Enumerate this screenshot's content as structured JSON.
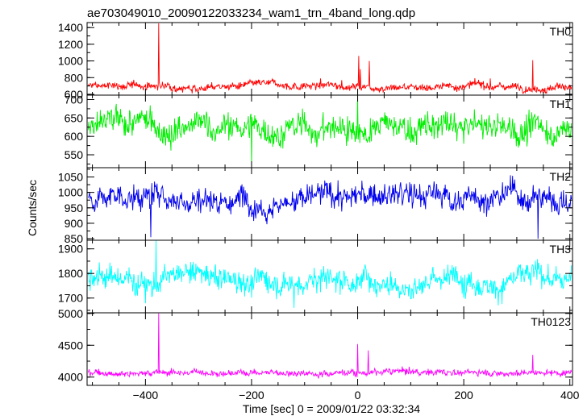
{
  "title": "ae703049010_20090122033234_wam1_trn_4band_long.qdp",
  "xlabel": "Time [sec] 0 = 2009/01/22 03:32:34",
  "ylabel": "Counts/sec",
  "chart_data": {
    "type": "line",
    "xlim": [
      -510,
      405
    ],
    "xticks": [
      -400,
      -200,
      0,
      200,
      400
    ],
    "grid": false,
    "panels": [
      {
        "name": "TH0",
        "color": "#ff0000",
        "ylim": [
          590,
          1460
        ],
        "yticks": [
          600,
          800,
          1000,
          1200,
          1400
        ],
        "baseline": 700,
        "noise": 40,
        "spikes": [
          [
            -375,
            1450
          ],
          [
            -70,
            790
          ],
          [
            -30,
            770
          ],
          [
            2,
            1060
          ],
          [
            5,
            900
          ],
          [
            22,
            1000
          ],
          [
            250,
            790
          ],
          [
            330,
            1010
          ]
        ]
      },
      {
        "name": "TH1",
        "color": "#00ee00",
        "ylim": [
          515,
          712
        ],
        "yticks": [
          550,
          600,
          650,
          700
        ],
        "baseline": 620,
        "noise": 33,
        "spikes": [
          [
            -200,
            520
          ],
          [
            0,
            712
          ]
        ]
      },
      {
        "name": "TH2",
        "color": "#0000ee",
        "ylim": [
          845,
          1080
        ],
        "yticks": [
          850,
          900,
          950,
          1000,
          1050
        ],
        "baseline": 985,
        "noise": 36,
        "spikes": [
          [
            -390,
            855
          ],
          [
            340,
            850
          ]
        ]
      },
      {
        "name": "TH3",
        "color": "#00ffff",
        "ylim": [
          1640,
          1935
        ],
        "yticks": [
          1700,
          1800,
          1900
        ],
        "baseline": 1780,
        "noise": 45,
        "spikes": [
          [
            -380,
            1935
          ],
          [
            -120,
            1660
          ]
        ]
      },
      {
        "name": "TH0123",
        "color": "#ff00ff",
        "ylim": [
          3870,
          5010
        ],
        "yticks": [
          4000,
          4500,
          5000
        ],
        "baseline": 4080,
        "noise": 45,
        "spikes": [
          [
            -375,
            5000
          ],
          [
            0,
            4520
          ],
          [
            20,
            4420
          ],
          [
            330,
            4350
          ]
        ]
      }
    ]
  }
}
